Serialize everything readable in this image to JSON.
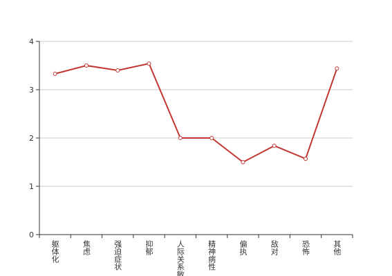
{
  "chart_data": {
    "type": "line",
    "categories": [
      "躯体化",
      "焦虑",
      "强迫症状",
      "抑郁",
      "人际关系敏感",
      "精神病性",
      "偏执",
      "敌对",
      "恐怖",
      "其他"
    ],
    "values": [
      3.33,
      3.5,
      3.4,
      3.54,
      2.0,
      2.0,
      1.5,
      1.84,
      1.57,
      3.44
    ],
    "color": "#c23531",
    "ylim": [
      0,
      4
    ],
    "yticks": [
      0,
      1,
      2,
      3,
      4
    ],
    "grid": true
  }
}
